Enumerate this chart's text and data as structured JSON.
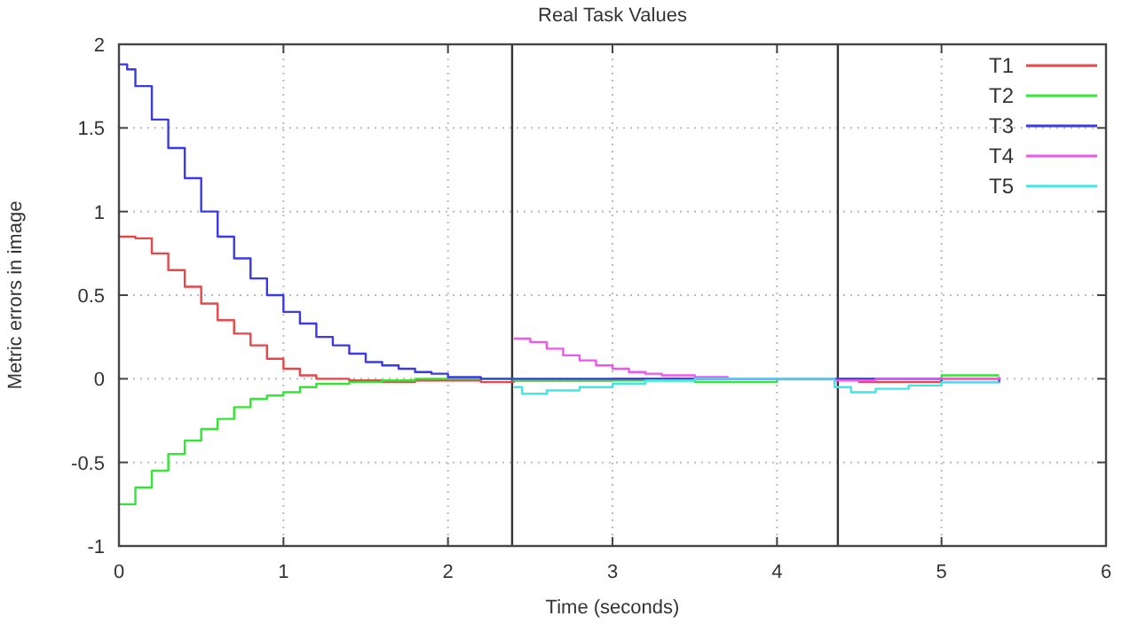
{
  "chart_data": {
    "type": "step",
    "title": "Real Task Values",
    "xlabel": "Time (seconds)",
    "ylabel": "Metric errors in image",
    "xlim": [
      0,
      6
    ],
    "xticks": [
      0,
      1,
      2,
      3,
      4,
      5,
      6
    ],
    "ylim": [
      -1,
      2
    ],
    "yticks": [
      -1,
      -0.5,
      0,
      0.5,
      1,
      1.5,
      2
    ],
    "grid": true,
    "legend": "top right",
    "ref_lines": [
      {
        "axis": "x",
        "value": 2.39,
        "color": "#333333"
      },
      {
        "axis": "x",
        "value": 4.37,
        "color": "#333333"
      }
    ],
    "series": [
      {
        "name": "T1",
        "color": "#e8474a",
        "x": [
          0,
          0.1,
          0.2,
          0.3,
          0.4,
          0.5,
          0.6,
          0.7,
          0.8,
          0.9,
          1.0,
          1.1,
          1.2,
          1.4,
          1.6,
          1.8,
          2.0,
          2.2,
          2.4,
          3,
          3.5,
          4,
          4.35,
          4.5,
          5,
          5.35
        ],
        "values": [
          0.85,
          0.84,
          0.75,
          0.65,
          0.55,
          0.45,
          0.35,
          0.27,
          0.2,
          0.12,
          0.06,
          0.02,
          0,
          -0.01,
          -0.02,
          -0.01,
          -0.01,
          -0.02,
          -0.01,
          0,
          0,
          0,
          0,
          -0.02,
          0,
          0.01
        ]
      },
      {
        "name": "T2",
        "color": "#33e633",
        "x": [
          0,
          0.1,
          0.2,
          0.3,
          0.4,
          0.5,
          0.6,
          0.7,
          0.8,
          0.9,
          1.0,
          1.1,
          1.2,
          1.4,
          1.6,
          1.8,
          2.0,
          2.4,
          3,
          3.5,
          4,
          4.35,
          5,
          5.35
        ],
        "values": [
          -0.75,
          -0.65,
          -0.55,
          -0.45,
          -0.37,
          -0.3,
          -0.24,
          -0.17,
          -0.12,
          -0.1,
          -0.08,
          -0.05,
          -0.03,
          -0.02,
          -0.01,
          0,
          0,
          -0.01,
          -0.01,
          -0.02,
          0,
          0,
          0.02,
          0.02
        ]
      },
      {
        "name": "T3",
        "color": "#3a3ae8",
        "x": [
          0,
          0.05,
          0.1,
          0.2,
          0.3,
          0.4,
          0.5,
          0.6,
          0.7,
          0.8,
          0.9,
          1.0,
          1.1,
          1.2,
          1.3,
          1.4,
          1.5,
          1.6,
          1.7,
          1.8,
          1.9,
          2.0,
          2.2,
          2.4,
          3,
          4,
          4.35,
          5,
          5.35
        ],
        "values": [
          1.88,
          1.85,
          1.75,
          1.55,
          1.38,
          1.2,
          1.0,
          0.85,
          0.72,
          0.6,
          0.5,
          0.4,
          0.33,
          0.25,
          0.2,
          0.15,
          0.1,
          0.08,
          0.06,
          0.04,
          0.03,
          0.01,
          0,
          0,
          0,
          0,
          0,
          -0.02,
          0
        ]
      },
      {
        "name": "T4",
        "color": "#f055f0",
        "x": [
          2.4,
          2.5,
          2.6,
          2.7,
          2.8,
          2.9,
          3.0,
          3.1,
          3.2,
          3.3,
          3.5,
          3.7,
          4,
          4.35,
          4.6,
          5,
          5.35
        ],
        "values": [
          0.24,
          0.22,
          0.18,
          0.14,
          0.11,
          0.08,
          0.06,
          0.04,
          0.03,
          0.02,
          0.01,
          0,
          0,
          -0.01,
          0,
          0,
          0.01
        ]
      },
      {
        "name": "T5",
        "color": "#3ee8e8",
        "x": [
          2.4,
          2.45,
          2.6,
          2.8,
          3.0,
          3.2,
          3.5,
          4,
          4.35,
          4.45,
          4.6,
          4.8,
          5.0,
          5.35
        ],
        "values": [
          -0.05,
          -0.09,
          -0.07,
          -0.05,
          -0.03,
          -0.01,
          0,
          0,
          -0.05,
          -0.08,
          -0.06,
          -0.04,
          -0.02,
          -0.02
        ]
      }
    ]
  }
}
